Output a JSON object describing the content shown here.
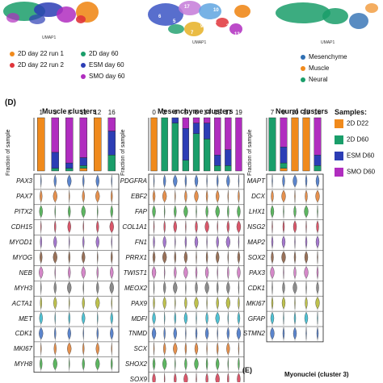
{
  "top": {
    "umap_label_1": "UMAP1",
    "umap_label_2": "UMAP1",
    "umap_label_3": "UMAP1",
    "cluster_numbers": [
      "6",
      "17",
      "10",
      "4",
      "5",
      "7",
      "9",
      "11",
      "3",
      "13",
      "18"
    ],
    "legend_left": [
      {
        "label": "2D day 22 run 1",
        "color": "#f08a1c"
      },
      {
        "label": "2D day 60",
        "color": "#1a9e6a"
      },
      {
        "label": "2D day 22 run 2",
        "color": "#e0343a"
      },
      {
        "label": "ESM day 60",
        "color": "#2c3db5"
      },
      {
        "label": "SMO day 60",
        "color": "#b02dbf"
      }
    ],
    "legend_right": [
      {
        "label": "Mesenchyme",
        "color": "#2f6fb3"
      },
      {
        "label": "Muscle",
        "color": "#f08a1c"
      },
      {
        "label": "Neural",
        "color": "#1a9e6a"
      }
    ]
  },
  "panel_d": {
    "label": "(D)",
    "y_axis_label": "Fraction of sample",
    "samples_title": "Samples:",
    "samples": [
      {
        "label": "2D D22",
        "color": "#f08a1c"
      },
      {
        "label": "2D D60",
        "color": "#1a9e6a"
      },
      {
        "label": "ESM D60",
        "color": "#2c3db5"
      },
      {
        "label": "SMO D60",
        "color": "#b02dbf"
      }
    ],
    "muscle": {
      "title": "Muscle clusters",
      "clusters": [
        "1",
        "3",
        "8",
        "11",
        "12",
        "16"
      ],
      "fractions": [
        [
          1.0,
          0.0,
          0.0,
          0.0
        ],
        [
          0.0,
          0.05,
          0.3,
          0.65
        ],
        [
          0.0,
          0.05,
          0.1,
          0.85
        ],
        [
          0.05,
          0.05,
          0.15,
          0.75
        ],
        [
          1.0,
          0.0,
          0.0,
          0.0
        ],
        [
          0.0,
          0.3,
          0.45,
          0.25
        ]
      ],
      "genes": [
        "PAX3",
        "PAX7",
        "PITX2",
        "CDH15",
        "MYOD1",
        "MYOG",
        "NEB",
        "MYH3",
        "ACTA1",
        "MET",
        "CDK1",
        "MKI67",
        "MYH8"
      ]
    },
    "mesenchyme": {
      "title": "Mesenchyme clusters",
      "clusters": [
        "0",
        "2",
        "4",
        "5",
        "6",
        "14",
        "15",
        "17",
        "19"
      ],
      "fractions": [
        [
          1.0,
          0.0,
          0.0,
          0.0
        ],
        [
          0.0,
          1.0,
          0.0,
          0.0
        ],
        [
          0.0,
          0.9,
          0.1,
          0.0
        ],
        [
          0.0,
          0.2,
          0.6,
          0.2
        ],
        [
          0.0,
          0.7,
          0.2,
          0.1
        ],
        [
          0.0,
          0.6,
          0.3,
          0.1
        ],
        [
          0.0,
          0.1,
          0.2,
          0.7
        ],
        [
          0.0,
          0.1,
          0.3,
          0.6
        ],
        [
          0.0,
          0.0,
          0.0,
          1.0
        ]
      ],
      "genes": [
        "PDGFRA",
        "EBF2",
        "FAP",
        "COL1A1",
        "FN1",
        "PRRX1",
        "TWIST1",
        "MEOX2",
        "PAX9",
        "MDFI",
        "TNMD",
        "SCX",
        "SHOX2",
        "SOX9"
      ]
    },
    "neural": {
      "title": "Neural clusters",
      "clusters": [
        "7",
        "9",
        "10",
        "13",
        "18"
      ],
      "fractions": [
        [
          0.0,
          1.0,
          0.0,
          0.0
        ],
        [
          0.05,
          0.1,
          0.3,
          0.55
        ],
        [
          1.0,
          0.0,
          0.0,
          0.0
        ],
        [
          1.0,
          0.0,
          0.0,
          0.0
        ],
        [
          0.0,
          0.1,
          0.2,
          0.7
        ]
      ],
      "genes": [
        "MAPT",
        "DCX",
        "LHX1",
        "NSG2",
        "MAP2",
        "SOX2",
        "PAX3",
        "CDK1",
        "MKI67",
        "GFAP",
        "STMN2"
      ]
    }
  },
  "panel_e": {
    "title": "Myonuclei (cluster 3)",
    "label": "(E)"
  }
}
